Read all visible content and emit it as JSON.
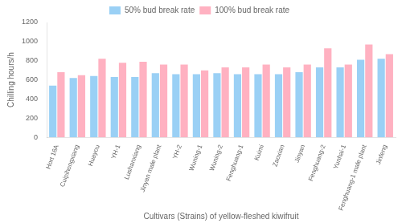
{
  "chart_data": {
    "type": "bar",
    "categories": [
      "Hort 16A",
      "Cuipihongxiang",
      "Huayou",
      "YH-1",
      "Lushanxiang",
      "Jinyan male plant",
      "YH-2",
      "Wuning-1",
      "Wuning-2",
      "Fenghuang-1",
      "Kuimi",
      "Zaoxian",
      "Jinyan",
      "Fenghuang-2",
      "Yunhai-1",
      "Fenghuang-1 male plant",
      "Jinfeng"
    ],
    "series": [
      {
        "name": "50% bud break rate",
        "values": [
          540,
          620,
          640,
          630,
          630,
          670,
          660,
          660,
          670,
          660,
          660,
          660,
          680,
          730,
          730,
          810,
          820
        ]
      },
      {
        "name": "100% bud break rate",
        "values": [
          680,
          650,
          820,
          780,
          790,
          760,
          760,
          700,
          730,
          730,
          760,
          730,
          760,
          930,
          760,
          970,
          870
        ]
      }
    ],
    "xlabel": "Cultivars (Strains) of yellow-fleshed kiwifruit",
    "ylabel": "Chilling hours/h",
    "ylim": [
      0,
      1200
    ],
    "yticks": [
      0,
      200,
      400,
      600,
      800,
      1000,
      1200
    ],
    "grid": false,
    "legend": "top"
  }
}
